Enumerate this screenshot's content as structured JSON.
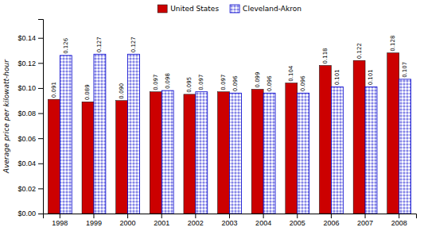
{
  "chart_data": {
    "type": "bar",
    "ylabel": "Average price per kilowatt-hour",
    "categories": [
      "1998",
      "1999",
      "2000",
      "2001",
      "2002",
      "2003",
      "2004",
      "2005",
      "2006",
      "2007",
      "2008"
    ],
    "series": [
      {
        "name": "United States",
        "color": "#CC0000",
        "values": [
          0.091,
          0.089,
          0.09,
          0.097,
          0.095,
          0.097,
          0.099,
          0.104,
          0.118,
          0.122,
          0.128
        ],
        "value_labels": [
          "0.091",
          "0.089",
          "0.090",
          "0.097",
          "0.095",
          "0.097",
          "0.099",
          "0.104",
          "0.118",
          "0.122",
          "0.128"
        ]
      },
      {
        "name": "Cleveland-Akron",
        "color": "#0000CC",
        "values": [
          0.126,
          0.127,
          0.127,
          0.098,
          0.097,
          0.096,
          0.096,
          0.096,
          0.101,
          0.101,
          0.107
        ],
        "value_labels": [
          "0.126",
          "0.127",
          "0.127",
          "0.098",
          "0.097",
          "0.096",
          "0.096",
          "0.096",
          "0.101",
          "0.101",
          "0.107"
        ]
      }
    ],
    "ylim": [
      0,
      0.155
    ],
    "yticks": [
      {
        "value": 0.0,
        "label": "$0.00"
      },
      {
        "value": 0.02,
        "label": "$0.02"
      },
      {
        "value": 0.04,
        "label": "$0.04"
      },
      {
        "value": 0.06,
        "label": "$0.06"
      },
      {
        "value": 0.08,
        "label": "$0.08"
      },
      {
        "value": 0.1,
        "label": "$0.10"
      },
      {
        "value": 0.12,
        "label": "$0.12"
      },
      {
        "value": 0.14,
        "label": "$0.14"
      }
    ],
    "data_labels": true,
    "legend": "top",
    "grid": false
  }
}
